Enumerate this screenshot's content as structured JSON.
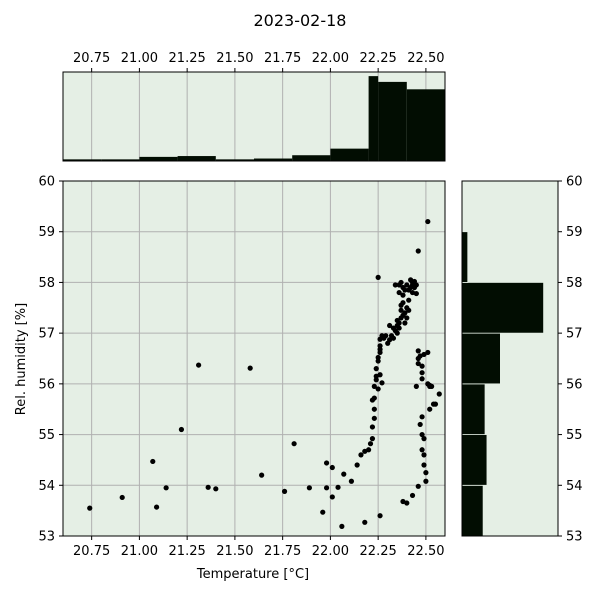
{
  "chart_data": {
    "type": "scatter",
    "title": "2023-02-18",
    "xlabel": "Temperature [°C]",
    "ylabel": "Rel. humidity [%]",
    "xlim": [
      20.6,
      22.6
    ],
    "ylim": [
      53,
      60
    ],
    "xticks": [
      "20.75",
      "21.00",
      "21.25",
      "21.50",
      "21.75",
      "22.00",
      "22.25",
      "22.50"
    ],
    "xtick_values": [
      20.75,
      21.0,
      21.25,
      21.5,
      21.75,
      22.0,
      22.25,
      22.5
    ],
    "yticks": [
      "53",
      "54",
      "55",
      "56",
      "57",
      "58",
      "59",
      "60"
    ],
    "ytick_values": [
      53,
      54,
      55,
      56,
      57,
      58,
      59,
      60
    ],
    "grid": true,
    "colors": {
      "background": "#e5efe5",
      "points": "#000000",
      "bars": "#020d02",
      "grid": "#b0b0b0"
    },
    "points": [
      [
        20.74,
        53.55
      ],
      [
        20.91,
        53.76
      ],
      [
        21.07,
        54.47
      ],
      [
        21.09,
        53.57
      ],
      [
        21.14,
        53.95
      ],
      [
        21.22,
        55.1
      ],
      [
        21.31,
        56.37
      ],
      [
        21.36,
        53.96
      ],
      [
        21.4,
        53.93
      ],
      [
        21.58,
        56.31
      ],
      [
        21.64,
        54.2
      ],
      [
        21.76,
        53.88
      ],
      [
        21.81,
        54.82
      ],
      [
        21.89,
        53.95
      ],
      [
        21.96,
        53.47
      ],
      [
        21.98,
        54.44
      ],
      [
        21.98,
        53.95
      ],
      [
        22.01,
        54.35
      ],
      [
        22.01,
        53.77
      ],
      [
        22.04,
        53.96
      ],
      [
        22.06,
        53.19
      ],
      [
        22.07,
        54.22
      ],
      [
        22.11,
        54.08
      ],
      [
        22.14,
        54.4
      ],
      [
        22.16,
        54.6
      ],
      [
        22.18,
        54.67
      ],
      [
        22.18,
        53.27
      ],
      [
        22.2,
        54.7
      ],
      [
        22.21,
        54.82
      ],
      [
        22.22,
        54.92
      ],
      [
        22.22,
        55.15
      ],
      [
        22.23,
        55.32
      ],
      [
        22.23,
        55.5
      ],
      [
        22.22,
        55.68
      ],
      [
        22.23,
        55.72
      ],
      [
        22.23,
        55.95
      ],
      [
        22.24,
        56.08
      ],
      [
        22.24,
        56.15
      ],
      [
        22.24,
        56.3
      ],
      [
        22.25,
        56.45
      ],
      [
        22.25,
        56.52
      ],
      [
        22.26,
        56.62
      ],
      [
        22.26,
        56.68
      ],
      [
        22.26,
        56.75
      ],
      [
        22.26,
        56.88
      ],
      [
        22.27,
        56.95
      ],
      [
        22.27,
        56.02
      ],
      [
        22.25,
        58.1
      ],
      [
        22.26,
        53.4
      ],
      [
        22.25,
        55.9
      ],
      [
        22.26,
        56.18
      ],
      [
        22.28,
        56.9
      ],
      [
        22.29,
        56.95
      ],
      [
        22.3,
        56.8
      ],
      [
        22.31,
        56.87
      ],
      [
        22.31,
        57.15
      ],
      [
        22.32,
        56.95
      ],
      [
        22.33,
        56.9
      ],
      [
        22.34,
        57.05
      ],
      [
        22.35,
        57.15
      ],
      [
        22.35,
        57.25
      ],
      [
        22.36,
        57.2
      ],
      [
        22.36,
        57.1
      ],
      [
        22.37,
        57.3
      ],
      [
        22.37,
        57.45
      ],
      [
        22.37,
        57.55
      ],
      [
        22.38,
        57.35
      ],
      [
        22.38,
        57.6
      ],
      [
        22.38,
        57.75
      ],
      [
        22.39,
        57.4
      ],
      [
        22.39,
        57.85
      ],
      [
        22.4,
        57.95
      ],
      [
        22.4,
        57.3
      ],
      [
        22.41,
        57.45
      ],
      [
        22.41,
        57.65
      ],
      [
        22.42,
        57.9
      ],
      [
        22.42,
        58.05
      ],
      [
        22.43,
        57.8
      ],
      [
        22.43,
        58.0
      ],
      [
        22.44,
        57.9
      ],
      [
        22.45,
        57.95
      ],
      [
        22.45,
        57.78
      ],
      [
        22.36,
        57.95
      ],
      [
        22.34,
        57.95
      ],
      [
        22.37,
        58.0
      ],
      [
        22.36,
        57.8
      ],
      [
        22.38,
        57.9
      ],
      [
        22.44,
        58.02
      ],
      [
        22.43,
        57.95
      ],
      [
        22.41,
        57.85
      ],
      [
        22.4,
        57.5
      ],
      [
        22.39,
        57.2
      ],
      [
        22.35,
        57.0
      ],
      [
        22.33,
        57.1
      ],
      [
        22.46,
        58.62
      ],
      [
        22.46,
        56.65
      ],
      [
        22.47,
        56.55
      ],
      [
        22.46,
        56.5
      ],
      [
        22.46,
        56.4
      ],
      [
        22.48,
        56.35
      ],
      [
        22.48,
        56.22
      ],
      [
        22.48,
        56.1
      ],
      [
        22.49,
        56.58
      ],
      [
        22.47,
        55.2
      ],
      [
        22.48,
        55.35
      ],
      [
        22.48,
        55.0
      ],
      [
        22.49,
        54.92
      ],
      [
        22.48,
        54.7
      ],
      [
        22.49,
        54.6
      ],
      [
        22.49,
        54.4
      ],
      [
        22.5,
        54.25
      ],
      [
        22.5,
        54.08
      ],
      [
        22.51,
        56.62
      ],
      [
        22.51,
        56.0
      ],
      [
        22.52,
        55.95
      ],
      [
        22.52,
        55.97
      ],
      [
        22.53,
        55.95
      ],
      [
        22.52,
        55.5
      ],
      [
        22.54,
        55.6
      ],
      [
        22.55,
        55.6
      ],
      [
        22.57,
        55.8
      ],
      [
        22.46,
        53.98
      ],
      [
        22.43,
        53.8
      ],
      [
        22.4,
        53.65
      ],
      [
        22.38,
        53.68
      ],
      [
        22.51,
        59.2
      ],
      [
        22.45,
        55.95
      ]
    ],
    "x_histogram": {
      "bin_edges": [
        20.6,
        20.8,
        21.0,
        21.2,
        21.4,
        21.6,
        21.8,
        22.0,
        22.2,
        22.25,
        22.4,
        22.6
      ],
      "density": [
        0.02,
        0.02,
        0.05,
        0.06,
        0.02,
        0.03,
        0.07,
        0.15,
        1.03,
        0.96,
        0.87
      ]
    },
    "y_histogram": {
      "bin_edges": [
        53,
        54,
        55,
        56,
        57,
        58,
        59,
        60
      ],
      "density": [
        0.22,
        0.26,
        0.24,
        0.4,
        0.85,
        0.06,
        0
      ]
    }
  }
}
